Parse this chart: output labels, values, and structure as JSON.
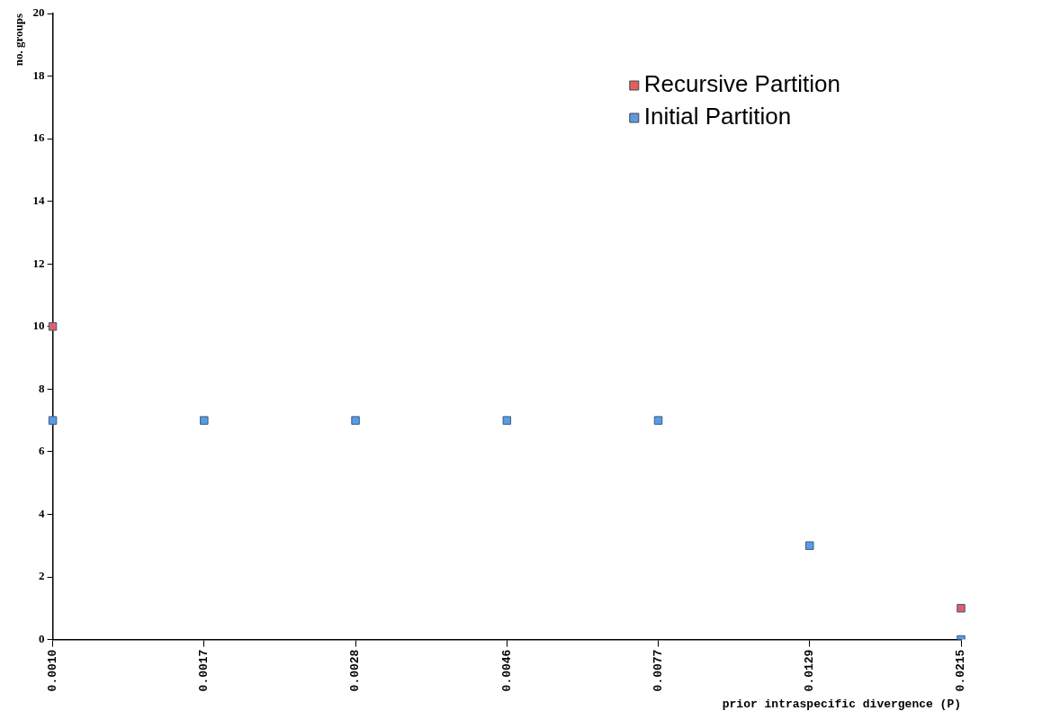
{
  "chart_data": {
    "type": "scatter",
    "xlabel": "prior intraspecific divergence (P)",
    "ylabel": "no. groups",
    "categories": [
      "0.0010",
      "0.0017",
      "0.0028",
      "0.0046",
      "0.0077",
      "0.0129",
      "0.0215"
    ],
    "series": [
      {
        "name": "Recursive Partition",
        "color": "#e06060",
        "values": [
          10,
          null,
          null,
          null,
          null,
          null,
          1
        ]
      },
      {
        "name": "Initial Partition",
        "color": "#5b9be0",
        "values": [
          7,
          7,
          7,
          7,
          7,
          3,
          0
        ]
      }
    ],
    "ylim": [
      0,
      20
    ],
    "yticks": [
      0,
      2,
      4,
      6,
      8,
      10,
      12,
      14,
      16,
      18,
      20
    ],
    "grid": false,
    "legend": "top right",
    "marker": "square"
  }
}
